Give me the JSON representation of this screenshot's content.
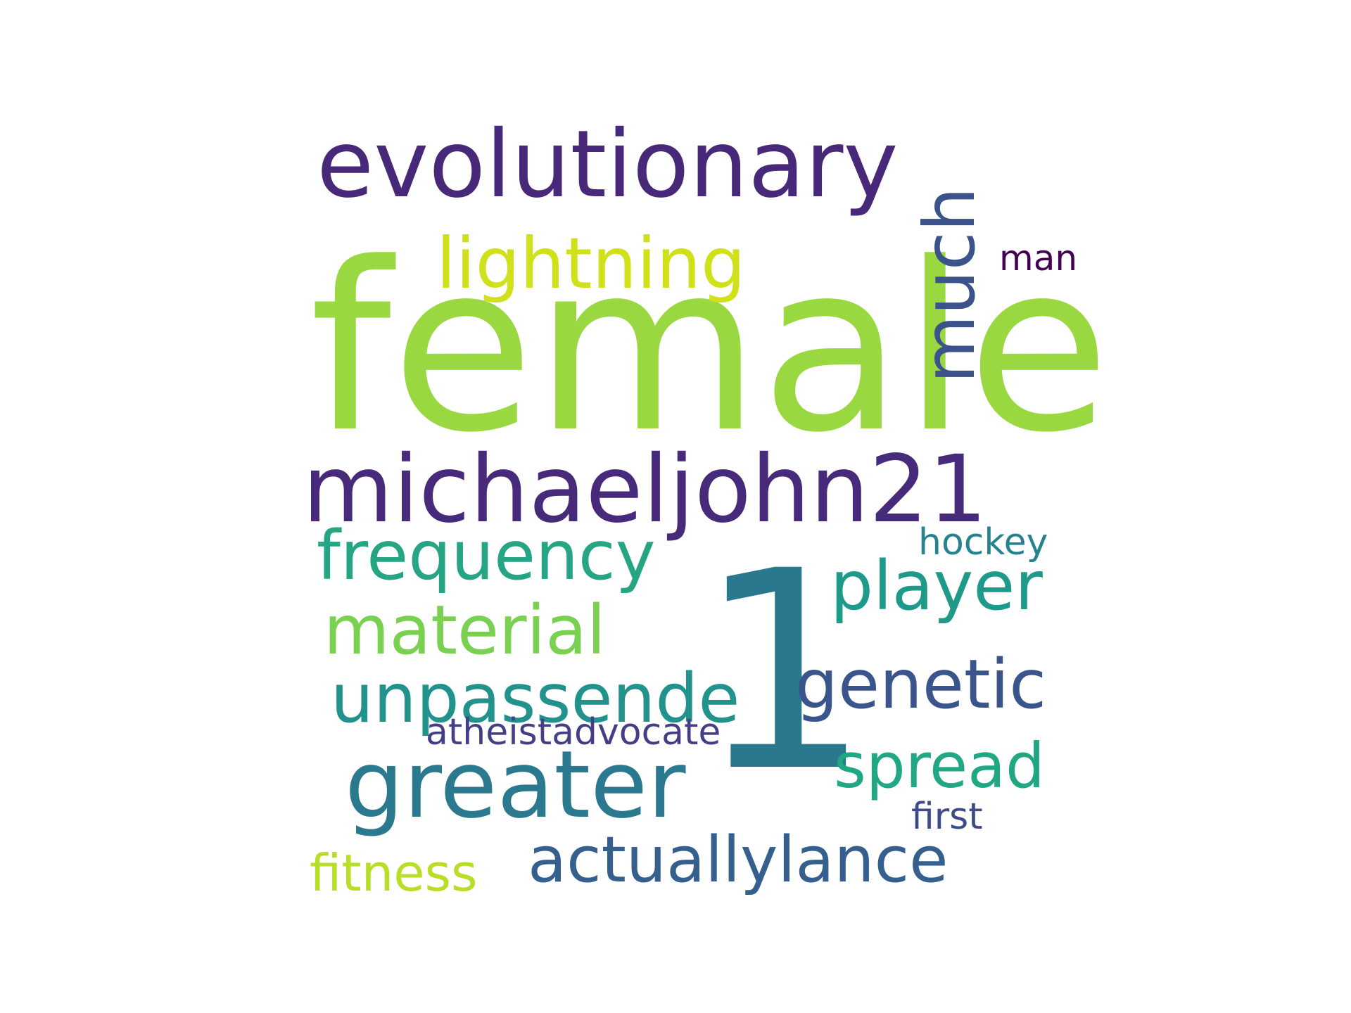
{
  "word_cloud": {
    "words": [
      {
        "text": "female",
        "color": "#9ad841"
      },
      {
        "text": "1",
        "color": "#2a788e"
      },
      {
        "text": "evolutionary",
        "color": "#482878"
      },
      {
        "text": "michaeljohn21",
        "color": "#472a7a"
      },
      {
        "text": "greater",
        "color": "#2b798e"
      },
      {
        "text": "lightning",
        "color": "#d0e11c"
      },
      {
        "text": "much",
        "color": "#3b528b"
      },
      {
        "text": "frequency",
        "color": "#25a584"
      },
      {
        "text": "player",
        "color": "#1f9a8a"
      },
      {
        "text": "material",
        "color": "#7ad151"
      },
      {
        "text": "unpassende",
        "color": "#22928c"
      },
      {
        "text": "genetic",
        "color": "#3a548c"
      },
      {
        "text": "spread",
        "color": "#22a785"
      },
      {
        "text": "actuallylance",
        "color": "#355f8d"
      },
      {
        "text": "fitness",
        "color": "#b8de29"
      },
      {
        "text": "atheistadvocate",
        "color": "#433e85"
      },
      {
        "text": "hockey",
        "color": "#26828e"
      },
      {
        "text": "first",
        "color": "#3e4a89"
      },
      {
        "text": "man",
        "color": "#440154"
      }
    ]
  }
}
